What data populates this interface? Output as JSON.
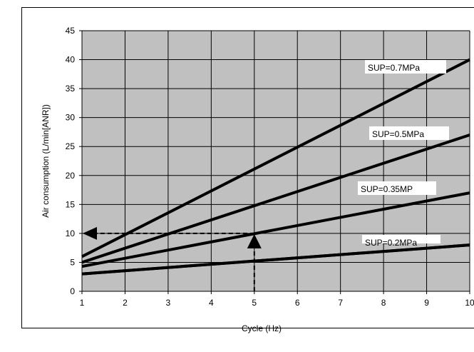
{
  "chart_data": {
    "type": "line",
    "title": "",
    "xlabel": "Cycle (Hz)",
    "ylabel": "Air consumption (L/min[ANR])",
    "xlim": [
      1,
      10
    ],
    "ylim": [
      0,
      45
    ],
    "x_ticks": [
      "1",
      "2",
      "3",
      "4",
      "5",
      "6",
      "7",
      "8",
      "9",
      "10"
    ],
    "y_ticks": [
      "0",
      "5",
      "10",
      "15",
      "20",
      "25",
      "30",
      "35",
      "40",
      "45"
    ],
    "grid": true,
    "series": [
      {
        "name": "SUP=0.7MPa",
        "x": [
          1,
          10
        ],
        "values": [
          6,
          40
        ]
      },
      {
        "name": "SUP=0.5MPa",
        "x": [
          1,
          10
        ],
        "values": [
          5,
          27
        ]
      },
      {
        "name": "SUP=0.35MP",
        "x": [
          1,
          10
        ],
        "values": [
          4.3,
          17
        ]
      },
      {
        "name": "SUP=0.2MPa",
        "x": [
          1,
          10
        ],
        "values": [
          3,
          8
        ]
      }
    ],
    "annotation": {
      "type": "dashed-arrow",
      "from": {
        "x": 5,
        "y": 0
      },
      "corner": {
        "x": 5,
        "y": 10
      },
      "to": {
        "x": 1,
        "y": 10
      }
    },
    "colors": {
      "plot_background": "#c0c0c0",
      "line": "#000000",
      "grid": "#000000"
    }
  }
}
